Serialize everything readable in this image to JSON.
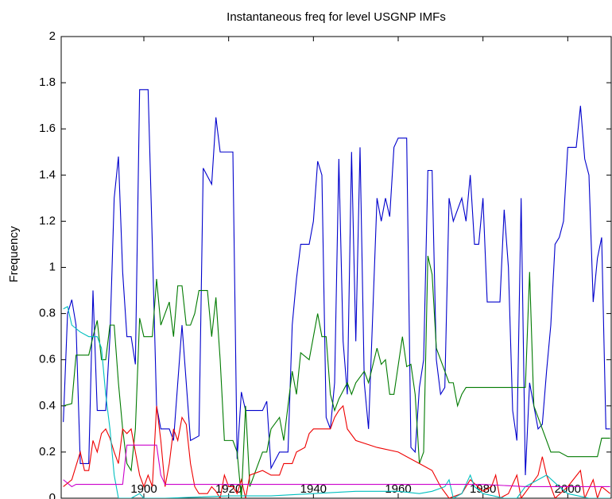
{
  "chart_data": {
    "type": "line",
    "title": "Instantaneous freq for level USGNP IMFs",
    "y_label": "Frequency",
    "xlim": [
      1880.5,
      2010.25
    ],
    "ylim": [
      0,
      2
    ],
    "xticks": [
      1900,
      1920,
      1940,
      1960,
      1980,
      2000
    ],
    "yticks": [
      0,
      0.2,
      0.4,
      0.6,
      0.8,
      1,
      1.2,
      1.4,
      1.6,
      1.8,
      2
    ],
    "grid": false,
    "series": [
      {
        "color": "#0000cc",
        "x": [
          1881,
          1882,
          1883,
          1884,
          1885,
          1887,
          1888,
          1889,
          1891,
          1892,
          1893,
          1894,
          1895,
          1896,
          1897,
          1898,
          1899,
          1901,
          1902,
          1903,
          1904,
          1906,
          1907,
          1909,
          1911,
          1913,
          1914,
          1916,
          1917,
          1918,
          1921,
          1922,
          1923,
          1924,
          1928,
          1929,
          1930,
          1932,
          1934,
          1935,
          1936,
          1937,
          1939,
          1940,
          1941,
          1942,
          1943,
          1944,
          1945,
          1946,
          1947,
          1948,
          1949,
          1950,
          1951,
          1952,
          1953,
          1954,
          1955,
          1956,
          1957,
          1958,
          1959,
          1960,
          1962,
          1963,
          1964,
          1965,
          1966,
          1967,
          1968,
          1969,
          1970,
          1971,
          1972,
          1973,
          1975,
          1976,
          1977,
          1978,
          1979,
          1980,
          1981,
          1984,
          1985,
          1986,
          1987,
          1988,
          1989,
          1990,
          1991,
          1992,
          1993,
          1994,
          1995,
          1996,
          1997,
          1998,
          1999,
          2000,
          2002,
          2003,
          2004,
          2005,
          2006,
          2007,
          2008,
          2009,
          2010
        ],
        "values": [
          0.33,
          0.8,
          0.86,
          0.75,
          0.15,
          0.15,
          0.9,
          0.38,
          0.38,
          0.7,
          1.3,
          1.48,
          0.98,
          0.7,
          0.7,
          0.58,
          1.77,
          1.77,
          1.1,
          0.4,
          0.3,
          0.3,
          0.25,
          0.75,
          0.25,
          0.27,
          1.43,
          1.36,
          1.65,
          1.5,
          1.5,
          0.17,
          0.46,
          0.38,
          0.38,
          0.42,
          0.13,
          0.2,
          0.2,
          0.75,
          0.95,
          1.1,
          1.1,
          1.2,
          1.46,
          1.4,
          0.35,
          0.3,
          0.5,
          1.47,
          0.68,
          0.45,
          1.5,
          0.68,
          1.52,
          0.5,
          0.3,
          0.8,
          1.3,
          1.2,
          1.3,
          1.22,
          1.52,
          1.56,
          1.56,
          0.22,
          0.2,
          0.48,
          0.6,
          1.42,
          1.42,
          0.6,
          0.45,
          0.48,
          1.3,
          1.2,
          1.3,
          1.2,
          1.4,
          1.1,
          1.1,
          1.3,
          0.85,
          0.85,
          1.25,
          1.0,
          0.38,
          0.25,
          1.3,
          0.1,
          0.5,
          0.4,
          0.3,
          0.32,
          0.55,
          0.75,
          1.1,
          1.13,
          1.2,
          1.52,
          1.52,
          1.7,
          1.47,
          1.4,
          0.85,
          1.04,
          1.13,
          0.3,
          0.3
        ]
      },
      {
        "color": "#007a00",
        "x": [
          1881,
          1883,
          1884,
          1887,
          1888,
          1889,
          1890,
          1891,
          1892,
          1893,
          1894,
          1895,
          1896,
          1897,
          1898,
          1899,
          1900,
          1902,
          1903,
          1904,
          1905,
          1906,
          1907,
          1908,
          1909,
          1910,
          1911,
          1912,
          1913,
          1915,
          1916,
          1917,
          1918,
          1919,
          1921,
          1922,
          1923,
          1924,
          1925,
          1926,
          1928,
          1929,
          1930,
          1932,
          1933,
          1934,
          1935,
          1936,
          1937,
          1939,
          1940,
          1941,
          1942,
          1943,
          1944,
          1945,
          1946,
          1948,
          1949,
          1950,
          1952,
          1953,
          1955,
          1956,
          1957,
          1958,
          1959,
          1961,
          1962,
          1963,
          1964,
          1965,
          1966,
          1967,
          1968,
          1969,
          1970,
          1972,
          1973,
          1974,
          1975,
          1976,
          1990,
          1991,
          1992,
          1994,
          1996,
          1998,
          2000,
          2007,
          2008,
          2010
        ],
        "values": [
          0.4,
          0.41,
          0.62,
          0.62,
          0.7,
          0.77,
          0.6,
          0.6,
          0.75,
          0.75,
          0.5,
          0.3,
          0.15,
          0.12,
          0.3,
          0.78,
          0.7,
          0.7,
          0.95,
          0.75,
          0.8,
          0.85,
          0.7,
          0.92,
          0.92,
          0.75,
          0.75,
          0.8,
          0.9,
          0.9,
          0.7,
          0.87,
          0.6,
          0.25,
          0.25,
          0.2,
          0.0,
          0.4,
          0.05,
          0.1,
          0.2,
          0.2,
          0.3,
          0.35,
          0.25,
          0.4,
          0.55,
          0.45,
          0.63,
          0.6,
          0.7,
          0.8,
          0.7,
          0.7,
          0.45,
          0.38,
          0.43,
          0.5,
          0.45,
          0.5,
          0.55,
          0.5,
          0.65,
          0.58,
          0.6,
          0.45,
          0.45,
          0.7,
          0.57,
          0.58,
          0.45,
          0.15,
          0.2,
          1.05,
          0.97,
          0.65,
          0.6,
          0.5,
          0.5,
          0.4,
          0.45,
          0.48,
          0.48,
          0.98,
          0.4,
          0.3,
          0.2,
          0.2,
          0.18,
          0.18,
          0.26,
          0.26
        ]
      },
      {
        "color": "#ee0000",
        "x": [
          1881,
          1883,
          1884,
          1885,
          1886,
          1887,
          1888,
          1889,
          1890,
          1891,
          1892,
          1893,
          1894,
          1895,
          1896,
          1897,
          1898,
          1899,
          1900,
          1901,
          1902,
          1903,
          1904,
          1905,
          1906,
          1907,
          1908,
          1909,
          1910,
          1911,
          1912,
          1913,
          1915,
          1916,
          1917,
          1918,
          1919,
          1920,
          1921,
          1922,
          1923,
          1924,
          1925,
          1928,
          1930,
          1932,
          1933,
          1935,
          1936,
          1938,
          1939,
          1940,
          1944,
          1945,
          1946,
          1947,
          1948,
          1950,
          1955,
          1960,
          1965,
          1968,
          1970,
          1972,
          1975,
          1977,
          1980,
          1982,
          1983,
          1984,
          1986,
          1988,
          1989,
          1991,
          1993,
          1994,
          1995,
          1997,
          2000,
          2003,
          2004,
          2006,
          2007,
          2008,
          2010
        ],
        "values": [
          0.05,
          0.08,
          0.14,
          0.2,
          0.12,
          0.12,
          0.25,
          0.2,
          0.28,
          0.3,
          0.26,
          0.2,
          0.15,
          0.3,
          0.28,
          0.3,
          0.2,
          0.1,
          0.05,
          0.1,
          0.05,
          0.4,
          0.25,
          0.05,
          0.15,
          0.3,
          0.25,
          0.35,
          0.32,
          0.15,
          0.05,
          0.02,
          0.02,
          0.05,
          0.03,
          0.0,
          0.1,
          0.05,
          0.05,
          0.02,
          0.08,
          0.0,
          0.1,
          0.12,
          0.1,
          0.1,
          0.15,
          0.15,
          0.2,
          0.22,
          0.28,
          0.3,
          0.3,
          0.35,
          0.38,
          0.4,
          0.3,
          0.25,
          0.22,
          0.2,
          0.15,
          0.12,
          0.05,
          0.0,
          0.02,
          0.08,
          0.03,
          0.05,
          0.1,
          0.0,
          0.02,
          0.1,
          0.0,
          0.05,
          0.1,
          0.18,
          0.1,
          0.0,
          0.05,
          0.12,
          0.0,
          0.08,
          0.0,
          0.05,
          0.02
        ]
      },
      {
        "color": "#00bfbf",
        "x": [
          1881,
          1882,
          1883,
          1885,
          1887,
          1889,
          1890,
          1891,
          1892,
          1893,
          1894,
          1897,
          1899,
          1900,
          1905,
          1920,
          1930,
          1940,
          1950,
          1960,
          1965,
          1968,
          1971,
          1972,
          1973,
          1975,
          1977,
          1978,
          1980,
          1985,
          1988,
          1990,
          1995,
          1998,
          2000,
          2005,
          2010
        ],
        "values": [
          0.82,
          0.83,
          0.75,
          0.72,
          0.7,
          0.7,
          0.65,
          0.45,
          0.3,
          0.1,
          0.0,
          0.0,
          0.02,
          0.0,
          0.0,
          0.01,
          0.01,
          0.02,
          0.03,
          0.03,
          0.02,
          0.03,
          0.05,
          0.08,
          0.0,
          0.02,
          0.1,
          0.05,
          0.02,
          0.0,
          0.0,
          0.05,
          0.1,
          0.05,
          0.02,
          0.0,
          0.0
        ]
      },
      {
        "color": "#cc00cc",
        "x": [
          1881,
          1883,
          1884,
          1893,
          1895,
          1896,
          1900,
          1903,
          1904,
          1905,
          1920,
          1940,
          1960,
          1980,
          1990,
          2000,
          2010
        ],
        "values": [
          0.08,
          0.05,
          0.06,
          0.06,
          0.06,
          0.23,
          0.23,
          0.23,
          0.1,
          0.06,
          0.06,
          0.06,
          0.06,
          0.06,
          0.05,
          0.05,
          0.05
        ]
      }
    ]
  }
}
